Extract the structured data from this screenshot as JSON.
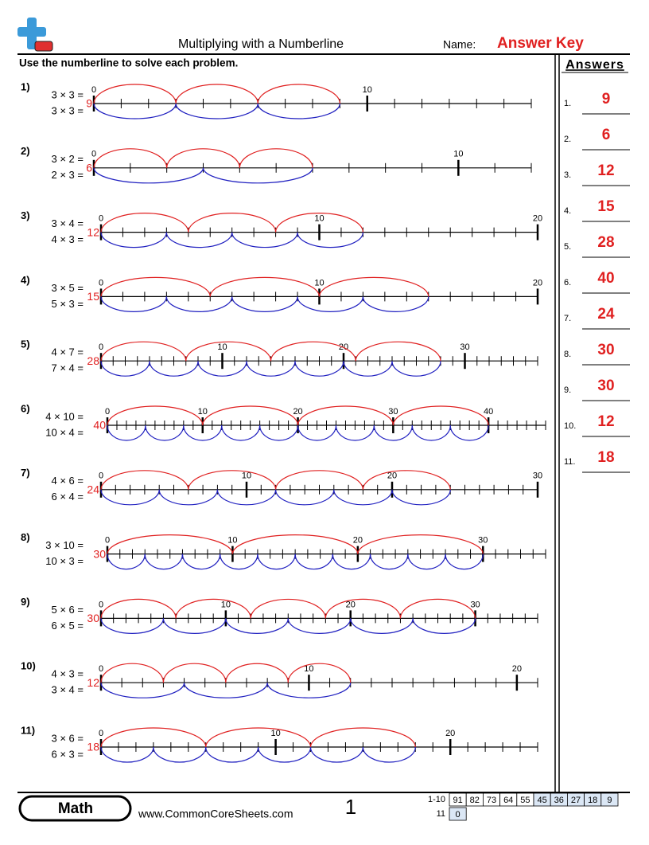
{
  "header": {
    "title": "Multiplying with a Numberline",
    "name_label": "Name:",
    "answer_key": "Answer Key"
  },
  "instructions": "Use the numberline to solve each problem.",
  "answers_title": "Answers",
  "problems": [
    {
      "label": "1)",
      "equations": [
        "3 × 3 =",
        "3 × 3 ="
      ],
      "factors": [
        3,
        3
      ],
      "max": 16,
      "labels": [
        0,
        10
      ]
    },
    {
      "label": "2)",
      "equations": [
        "3 × 2 =",
        "2 × 3 ="
      ],
      "factors": [
        3,
        2
      ],
      "max": 12,
      "labels": [
        0,
        10
      ]
    },
    {
      "label": "3)",
      "equations": [
        "3 × 4 =",
        "4 × 3 ="
      ],
      "factors": [
        3,
        4
      ],
      "max": 20,
      "labels": [
        0,
        10,
        20
      ]
    },
    {
      "label": "4)",
      "equations": [
        "3 × 5 =",
        "5 × 3 ="
      ],
      "factors": [
        3,
        5
      ],
      "max": 20,
      "labels": [
        0,
        10,
        20
      ]
    },
    {
      "label": "5)",
      "equations": [
        "4 × 7 =",
        "7 × 4 ="
      ],
      "factors": [
        4,
        7
      ],
      "max": 36,
      "labels": [
        0,
        10,
        20,
        30
      ]
    },
    {
      "label": "6)",
      "equations": [
        "4 × 10 =",
        "10 × 4 ="
      ],
      "factors": [
        4,
        10
      ],
      "max": 46,
      "labels": [
        0,
        10,
        20,
        30,
        40
      ]
    },
    {
      "label": "7)",
      "equations": [
        "4 × 6 =",
        "6 × 4 ="
      ],
      "factors": [
        4,
        6
      ],
      "max": 30,
      "labels": [
        0,
        10,
        20,
        30
      ]
    },
    {
      "label": "8)",
      "equations": [
        "3 × 10 =",
        "10 × 3 ="
      ],
      "factors": [
        3,
        10
      ],
      "max": 35,
      "labels": [
        0,
        10,
        20,
        30
      ]
    },
    {
      "label": "9)",
      "equations": [
        "5 × 6 =",
        "6 × 5 ="
      ],
      "factors": [
        5,
        6
      ],
      "max": 35,
      "labels": [
        0,
        10,
        20,
        30
      ]
    },
    {
      "label": "10)",
      "equations": [
        "4 × 3 =",
        "3 × 4 ="
      ],
      "factors": [
        4,
        3
      ],
      "max": 21,
      "labels": [
        0,
        10,
        20
      ]
    },
    {
      "label": "11)",
      "equations": [
        "3 × 6 =",
        "6 × 3 ="
      ],
      "factors": [
        3,
        6
      ],
      "max": 25,
      "labels": [
        0,
        10,
        20
      ]
    }
  ],
  "answers": [
    {
      "number": "1.",
      "value": "9"
    },
    {
      "number": "2.",
      "value": "6"
    },
    {
      "number": "3.",
      "value": "12"
    },
    {
      "number": "4.",
      "value": "15"
    },
    {
      "number": "5.",
      "value": "28"
    },
    {
      "number": "6.",
      "value": "40"
    },
    {
      "number": "7.",
      "value": "24"
    },
    {
      "number": "8.",
      "value": "30"
    },
    {
      "number": "9.",
      "value": "30"
    },
    {
      "number": "10.",
      "value": "12"
    },
    {
      "number": "11.",
      "value": "18"
    }
  ],
  "footer": {
    "subject": "Math",
    "website": "www.CommonCoreSheets.com",
    "page": "1",
    "score_rows": [
      {
        "label": "1-10",
        "cells": [
          "91",
          "82",
          "73",
          "64",
          "55",
          "45",
          "36",
          "27",
          "18",
          "9"
        ]
      },
      {
        "label": "11",
        "cells": [
          "0"
        ]
      }
    ]
  }
}
